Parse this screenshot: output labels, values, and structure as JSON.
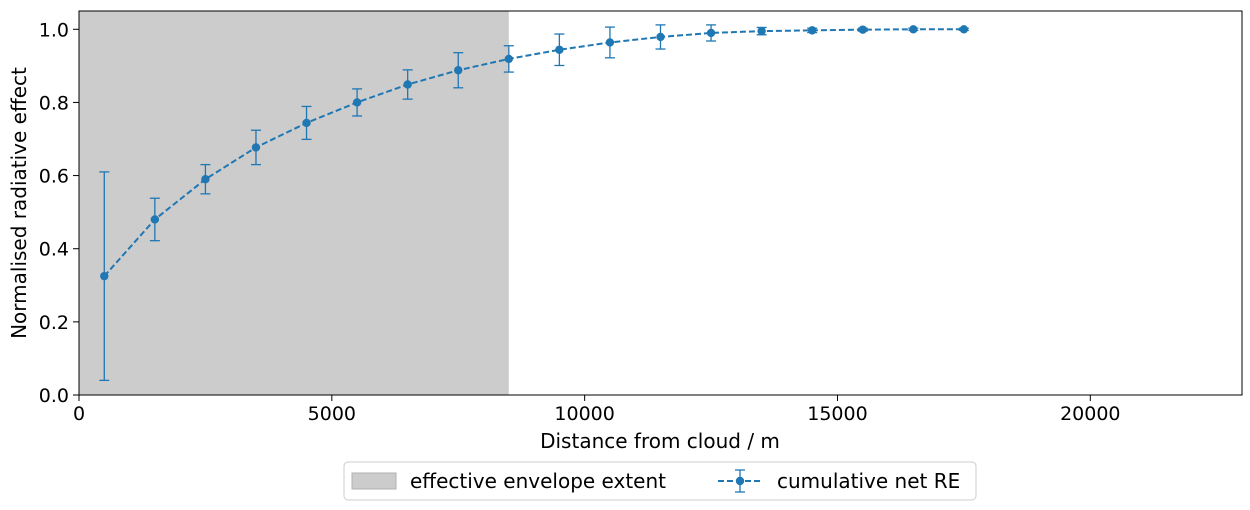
{
  "chart_data": {
    "type": "line",
    "xlabel": "Distance from cloud / m",
    "ylabel": "Normalised radiative effect",
    "xlim": [
      0,
      23000
    ],
    "ylim": [
      0,
      1.05
    ],
    "xticks": [
      0,
      5000,
      10000,
      15000,
      20000
    ],
    "yticks": [
      0.0,
      0.2,
      0.4,
      0.6,
      0.8,
      1.0
    ],
    "xtick_labels": [
      "0",
      "5000",
      "10000",
      "15000",
      "20000"
    ],
    "ytick_labels": [
      "0.0",
      "0.2",
      "0.4",
      "0.6",
      "0.8",
      "1.0"
    ],
    "grid": false,
    "legend_placement": "below plot, centered",
    "shaded_region": {
      "name": "effective envelope extent",
      "x_start": 0,
      "x_end": 8500,
      "color": "#cccccc"
    },
    "series": [
      {
        "name": "cumulative net RE",
        "color": "#1f77b4",
        "linestyle": "dashed",
        "marker": "circle",
        "x": [
          500,
          1500,
          2500,
          3500,
          4500,
          5500,
          6500,
          7500,
          8500,
          9500,
          10500,
          11500,
          12500,
          13500,
          14500,
          15500,
          16500,
          17500
        ],
        "y": [
          0.325,
          0.48,
          0.59,
          0.677,
          0.744,
          0.8,
          0.849,
          0.888,
          0.919,
          0.944,
          0.964,
          0.979,
          0.99,
          0.995,
          0.997,
          0.999,
          1.0,
          1.0
        ],
        "err": [
          0.285,
          0.058,
          0.04,
          0.047,
          0.045,
          0.037,
          0.04,
          0.048,
          0.036,
          0.043,
          0.042,
          0.033,
          0.022,
          0.01,
          0.006,
          0.004,
          0.003,
          0.003
        ]
      }
    ],
    "legend": [
      "effective envelope extent",
      "cumulative net RE"
    ]
  }
}
